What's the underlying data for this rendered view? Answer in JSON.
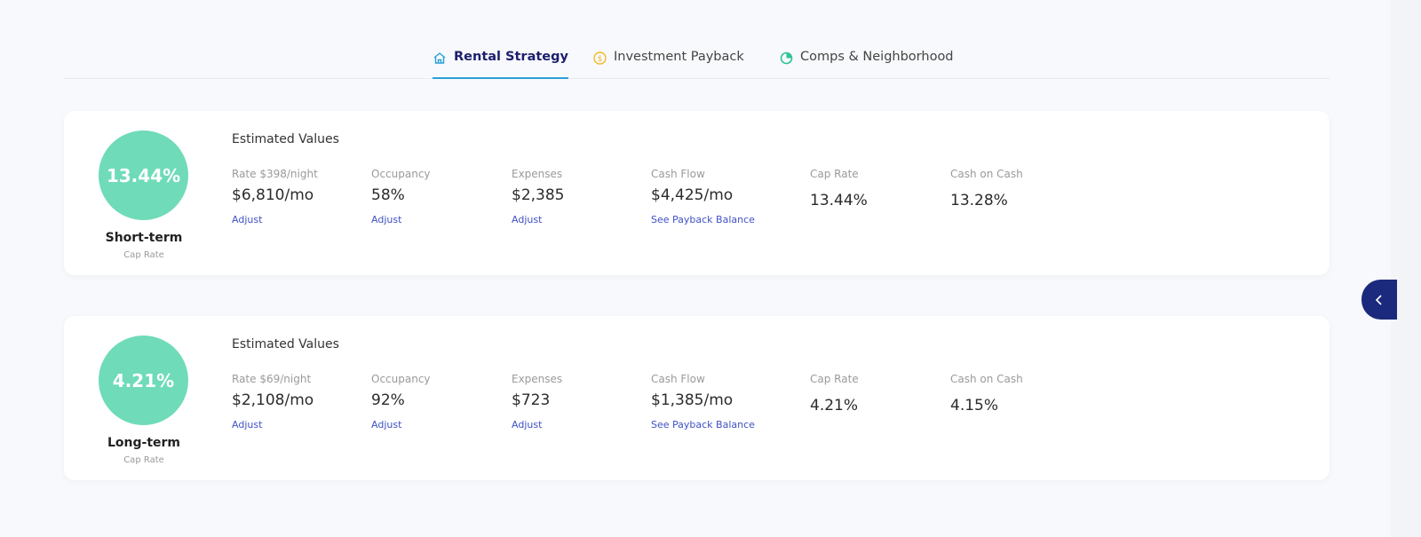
{
  "tabs": [
    {
      "label": "Rental Strategy",
      "icon": "home-icon",
      "active": true
    },
    {
      "label": "Investment Payback",
      "icon": "dollar-coin-icon",
      "active": false
    },
    {
      "label": "Comps & Neighborhood",
      "icon": "pie-chart-icon",
      "active": false
    }
  ],
  "colors": {
    "accent": "#6fdbb8",
    "navy": "#1b2a7c",
    "link": "#3f51c4",
    "tab_underline": "#2a9fd6"
  },
  "strategies": [
    {
      "cap_rate_badge": "13.44%",
      "title": "Short-term",
      "subtitle": "Cap Rate",
      "heading": "Estimated Values",
      "rate_label": "Rate $398/night",
      "rate_value": "$6,810/mo",
      "rate_link": "Adjust",
      "occupancy_label": "Occupancy",
      "occupancy_value": "58%",
      "occupancy_link": "Adjust",
      "expenses_label": "Expenses",
      "expenses_value": "$2,385",
      "expenses_link": "Adjust",
      "cashflow_label": "Cash Flow",
      "cashflow_value": "$4,425/mo",
      "cashflow_link": "See Payback Balance",
      "caprate_label": "Cap Rate",
      "caprate_value": "13.44%",
      "coc_label": "Cash on Cash",
      "coc_value": "13.28%"
    },
    {
      "cap_rate_badge": "4.21%",
      "title": "Long-term",
      "subtitle": "Cap Rate",
      "heading": "Estimated Values",
      "rate_label": "Rate $69/night",
      "rate_value": "$2,108/mo",
      "rate_link": "Adjust",
      "occupancy_label": "Occupancy",
      "occupancy_value": "92%",
      "occupancy_link": "Adjust",
      "expenses_label": "Expenses",
      "expenses_value": "$723",
      "expenses_link": "Adjust",
      "cashflow_label": "Cash Flow",
      "cashflow_value": "$1,385/mo",
      "cashflow_link": "See Payback Balance",
      "caprate_label": "Cap Rate",
      "caprate_value": "4.21%",
      "coc_label": "Cash on Cash",
      "coc_value": "4.15%"
    }
  ]
}
